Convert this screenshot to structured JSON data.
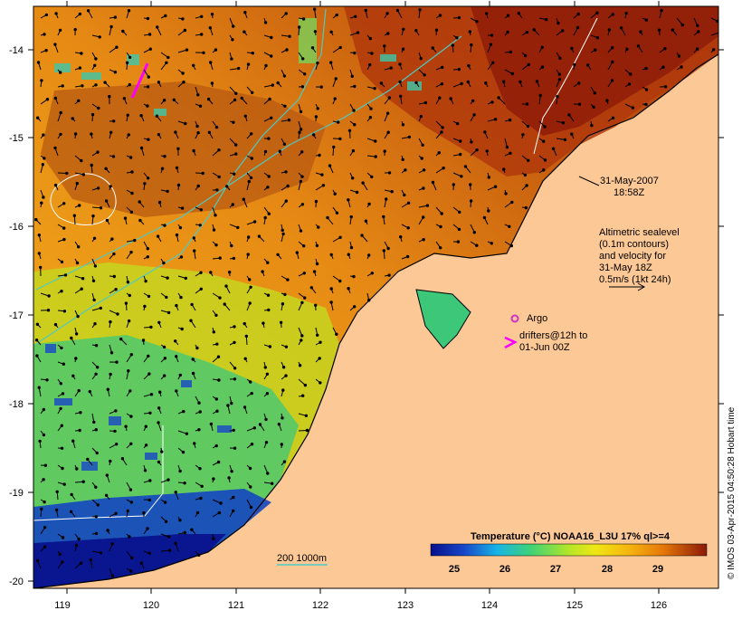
{
  "map": {
    "date_line1": "31-May-2007",
    "date_line2": "18:58Z",
    "legend_lines": [
      "Altimetric sealevel",
      "(0.1m contours)",
      "and velocity for",
      "31-May 18Z",
      "0.5m/s (1kt 24h)"
    ],
    "argo_label": "Argo",
    "drifters_line1": "drifters@12h to",
    "drifters_line2": "01-Jun 00Z",
    "bathymetry_label": "200  1000m",
    "credit": "© IMOS 03-Apr-2015 04:50:28 Hobart time",
    "colors": {
      "land": "#fcc896",
      "isobath": "#4fc9c4",
      "drifter": "#ff00ff",
      "argo": "#cc33cc"
    }
  },
  "lat_axis": {
    "ticks": [
      "-14",
      "-15",
      "-16",
      "-17",
      "-18",
      "-19",
      "-20"
    ]
  },
  "lon_axis": {
    "ticks": [
      "119",
      "120",
      "121",
      "122",
      "123",
      "124",
      "125",
      "126"
    ]
  },
  "colorbar": {
    "title": "Temperature (°C) NOAA16_L3U 17% ql>=4",
    "ticks": [
      "25",
      "26",
      "27",
      "28",
      "29"
    ],
    "min": 24.5,
    "max": 29.9
  }
}
